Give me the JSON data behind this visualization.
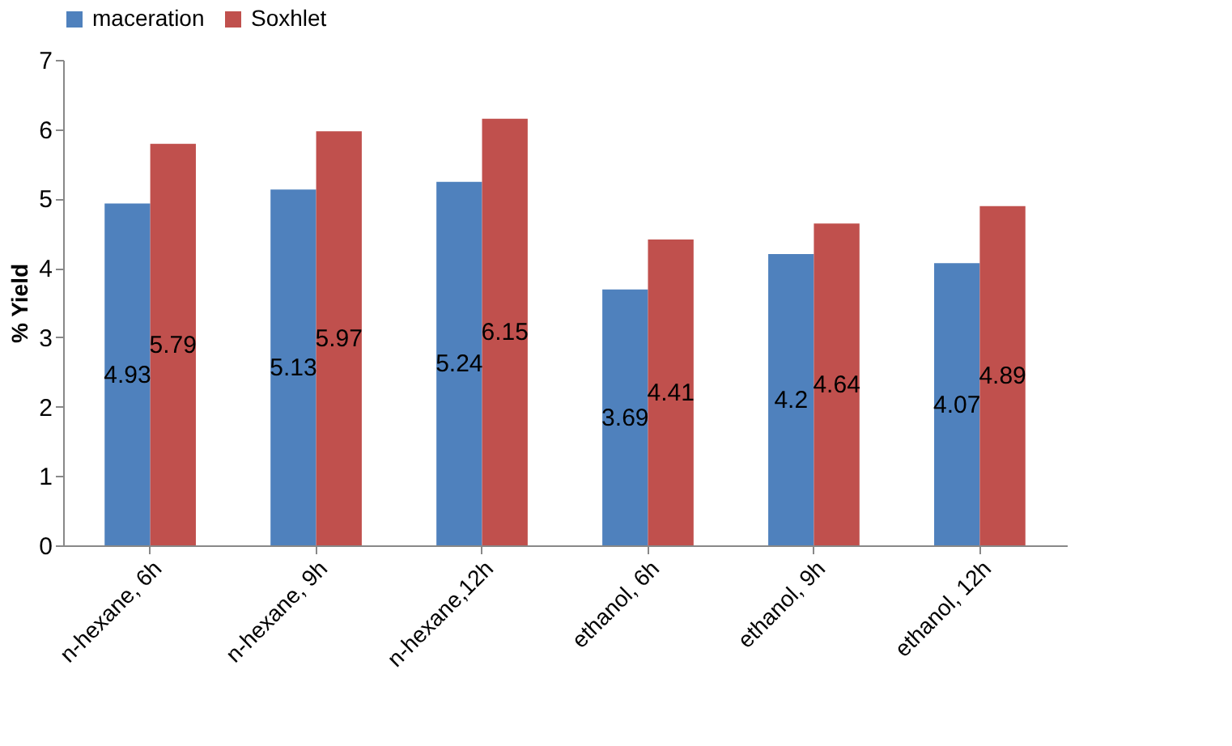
{
  "chart_data": {
    "type": "bar",
    "ylabel": "% Yield",
    "categories": [
      "n-hexane, 6h",
      "n-hexane, 9h",
      "n-hexane,12h",
      "ethanol, 6h",
      "ethanol, 9h",
      "ethanol, 12h"
    ],
    "series": [
      {
        "name": "maceration",
        "color": "#4f81bd",
        "values": [
          4.93,
          5.13,
          5.24,
          3.69,
          4.2,
          4.07
        ]
      },
      {
        "name": "Soxhlet",
        "color": "#c0504d",
        "values": [
          5.79,
          5.97,
          6.15,
          4.41,
          4.64,
          4.89
        ]
      }
    ],
    "ylim": [
      0,
      7
    ],
    "yticks": [
      0,
      1,
      2,
      3,
      4,
      5,
      6,
      7
    ],
    "grid": false,
    "legend": "top",
    "data_labels": true
  }
}
